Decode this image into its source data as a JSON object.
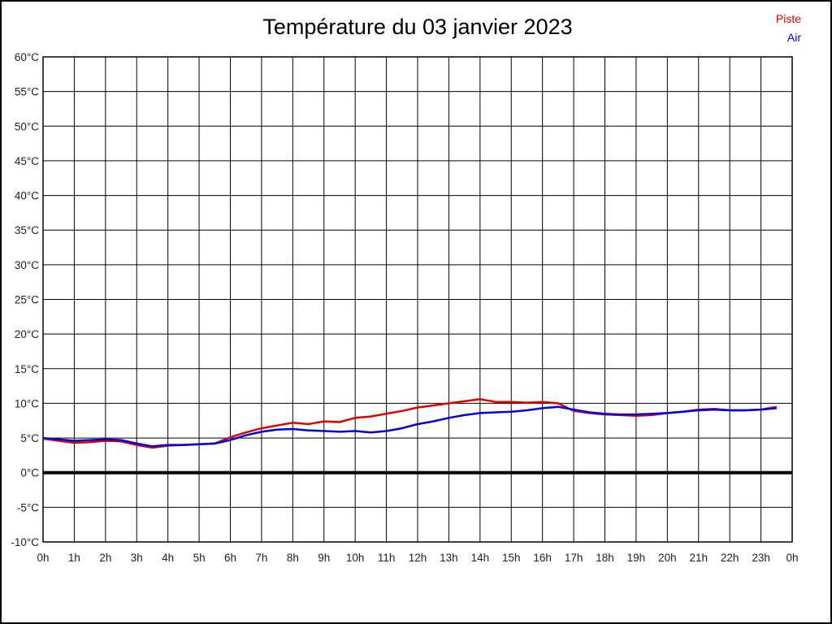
{
  "title": "Température du 03 janvier 2023",
  "legend": [
    {
      "label": "Piste",
      "color": "#e00000"
    },
    {
      "label": "Air",
      "color": "#0000e0"
    }
  ],
  "chart_data": {
    "type": "line",
    "title": "Température du 03 janvier 2023",
    "xlabel": "",
    "ylabel": "",
    "xlim": [
      0,
      24
    ],
    "ylim": [
      -10,
      60
    ],
    "y_step": 5,
    "x_step": 1,
    "grid": true,
    "zero_line": true,
    "legend_position": "top-right",
    "x_tick_labels": [
      "0h",
      "1h",
      "2h",
      "3h",
      "4h",
      "5h",
      "6h",
      "7h",
      "8h",
      "9h",
      "10h",
      "11h",
      "12h",
      "13h",
      "14h",
      "15h",
      "16h",
      "17h",
      "18h",
      "19h",
      "20h",
      "21h",
      "22h",
      "23h",
      "0h"
    ],
    "y_tick_labels": [
      "60°C",
      "55°C",
      "50°C",
      "45°C",
      "40°C",
      "35°C",
      "30°C",
      "25°C",
      "20°C",
      "15°C",
      "10°C",
      "5°C",
      "0°C",
      "-5°C",
      "-10°C"
    ],
    "time_hours": [
      0,
      0.5,
      1,
      1.5,
      2,
      2.5,
      3,
      3.5,
      4,
      4.5,
      5,
      5.5,
      6,
      6.5,
      7,
      7.5,
      8,
      8.5,
      9,
      9.5,
      10,
      10.5,
      11,
      11.5,
      12,
      12.5,
      13,
      13.5,
      14,
      14.5,
      15,
      15.5,
      16,
      16.5,
      17,
      17.5,
      18,
      18.5,
      19,
      19.5,
      20,
      20.5,
      21,
      21.5,
      22,
      22.5,
      23,
      23.5
    ],
    "series": [
      {
        "name": "Piste",
        "color": "#e00000",
        "values": [
          4.9,
          4.6,
          4.3,
          4.4,
          4.6,
          4.5,
          4.0,
          3.6,
          3.9,
          4.0,
          4.1,
          4.2,
          5.1,
          5.8,
          6.4,
          6.8,
          7.2,
          7.0,
          7.4,
          7.3,
          7.9,
          8.1,
          8.5,
          8.9,
          9.4,
          9.7,
          10.0,
          10.3,
          10.6,
          10.2,
          10.2,
          10.1,
          10.2,
          10.0,
          8.9,
          8.6,
          8.4,
          8.3,
          8.2,
          8.3,
          8.6,
          8.8,
          9.1,
          9.2,
          9.0,
          9.0,
          9.1,
          9.5
        ]
      },
      {
        "name": "Air",
        "color": "#0000e0",
        "values": [
          5.0,
          4.8,
          4.6,
          4.7,
          4.8,
          4.7,
          4.2,
          3.8,
          4.0,
          4.0,
          4.1,
          4.2,
          4.7,
          5.4,
          5.9,
          6.2,
          6.3,
          6.1,
          6.0,
          5.9,
          6.0,
          5.8,
          6.0,
          6.4,
          7.0,
          7.4,
          7.9,
          8.3,
          8.6,
          8.7,
          8.8,
          9.0,
          9.3,
          9.5,
          9.1,
          8.7,
          8.5,
          8.4,
          8.4,
          8.5,
          8.6,
          8.8,
          9.0,
          9.1,
          9.0,
          9.0,
          9.1,
          9.3
        ]
      }
    ]
  }
}
